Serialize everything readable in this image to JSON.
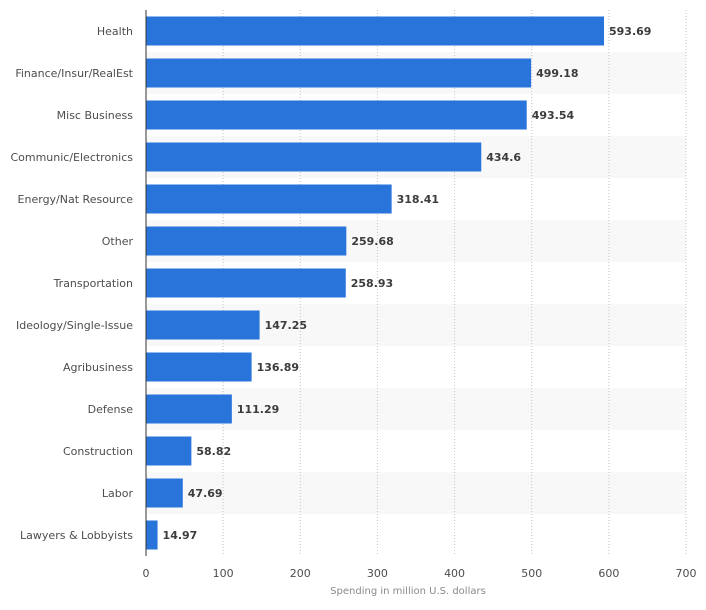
{
  "chart_data": {
    "type": "bar",
    "orientation": "horizontal",
    "title": "",
    "xlabel": "Spending in million U.S. dollars",
    "ylabel": "",
    "xlim": [
      0,
      700
    ],
    "x_ticks": [
      0,
      100,
      200,
      300,
      400,
      500,
      600,
      700
    ],
    "grid": "vertical dotted",
    "legend": "none",
    "bar_color": "#2874db",
    "categories": [
      "Health",
      "Finance/Insur/RealEst",
      "Misc Business",
      "Communic/Electronics",
      "Energy/Nat Resource",
      "Other",
      "Transportation",
      "Ideology/Single-Issue",
      "Agribusiness",
      "Defense",
      "Construction",
      "Labor",
      "Lawyers & Lobbyists"
    ],
    "values": [
      593.69,
      499.18,
      493.54,
      434.6,
      318.41,
      259.68,
      258.93,
      147.25,
      136.89,
      111.29,
      58.82,
      47.69,
      14.97
    ],
    "value_labels": [
      "593.69",
      "499.18",
      "493.54",
      "434.6",
      "318.41",
      "259.68",
      "258.93",
      "147.25",
      "136.89",
      "111.29",
      "58.82",
      "47.69",
      "14.97"
    ],
    "tick_labels": [
      "0",
      "100",
      "200",
      "300",
      "400",
      "500",
      "600",
      "700"
    ]
  }
}
